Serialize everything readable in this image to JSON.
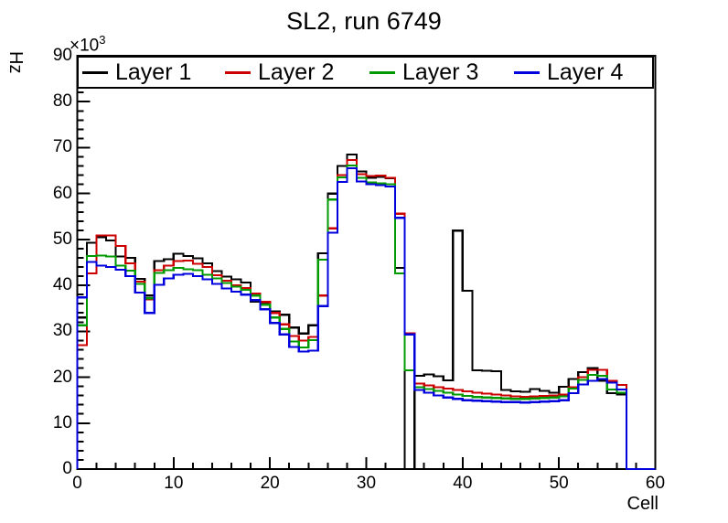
{
  "title": "SL2, run 6749",
  "chart_data": {
    "type": "line",
    "style": "step-histogram",
    "title": "SL2, run 6749",
    "xlabel": "Cell",
    "ylabel": "Hz",
    "y_multiplier_base": "×10",
    "y_multiplier_exp": "3",
    "xlim": [
      0,
      60
    ],
    "ylim": [
      0,
      90
    ],
    "bin_width": 1,
    "x_tick_labels": [
      "0",
      "10",
      "20",
      "30",
      "40",
      "50",
      "60"
    ],
    "y_tick_labels": [
      "0",
      "10",
      "20",
      "30",
      "40",
      "50",
      "60",
      "70",
      "80",
      "90"
    ],
    "x_minor_step": 2,
    "y_minor_step": 2,
    "grid": false,
    "legend_position": "top-inside-full-width",
    "frame_color": "#000000",
    "series": [
      {
        "name": "Layer 1",
        "color": "#000000",
        "values": [
          33.0,
          49.3,
          50.5,
          49.8,
          46.3,
          46.0,
          41.4,
          37.8,
          45.3,
          45.7,
          46.9,
          46.4,
          45.9,
          44.8,
          43.1,
          41.9,
          41.3,
          40.6,
          36.5,
          36.0,
          34.3,
          33.6,
          30.8,
          29.5,
          31.3,
          47.0,
          60.0,
          66.0,
          68.5,
          64.8,
          63.4,
          63.6,
          63.3,
          43.8,
          0.0,
          20.3,
          20.6,
          20.2,
          19.3,
          51.9,
          38.8,
          21.5,
          21.4,
          21.3,
          17.2,
          16.9,
          16.8,
          17.4,
          17.0,
          16.6,
          17.9,
          19.6,
          21.1,
          22.0,
          19.2,
          16.5,
          16.2,
          0.0,
          0.0,
          0.0
        ]
      },
      {
        "name": "Layer 2",
        "color": "#cc0000",
        "values": [
          27.0,
          42.6,
          50.9,
          50.9,
          48.6,
          44.8,
          40.8,
          37.0,
          43.3,
          44.3,
          45.3,
          45.4,
          44.7,
          44.0,
          42.2,
          41.0,
          40.0,
          39.4,
          38.2,
          36.4,
          34.0,
          31.5,
          29.0,
          28.0,
          28.8,
          37.8,
          52.4,
          64.0,
          67.3,
          64.2,
          63.8,
          63.9,
          63.4,
          55.6,
          29.5,
          18.6,
          18.2,
          17.8,
          17.5,
          17.2,
          16.9,
          16.6,
          16.4,
          16.2,
          16.0,
          15.8,
          15.7,
          15.8,
          15.9,
          16.0,
          16.2,
          17.8,
          20.0,
          21.6,
          21.6,
          19.2,
          18.3,
          0.0,
          0.0,
          0.0
        ]
      },
      {
        "name": "Layer 3",
        "color": "#009900",
        "values": [
          31.3,
          46.4,
          46.5,
          46.3,
          44.3,
          43.2,
          40.3,
          37.2,
          42.7,
          43.3,
          43.8,
          43.5,
          43.3,
          42.3,
          41.5,
          40.5,
          39.7,
          39.0,
          37.8,
          35.8,
          33.0,
          30.5,
          27.8,
          26.5,
          28.1,
          45.6,
          58.7,
          63.5,
          66.1,
          63.4,
          62.4,
          62.2,
          62.0,
          42.6,
          21.5,
          17.8,
          17.4,
          17.0,
          16.6,
          16.2,
          15.9,
          15.7,
          15.6,
          15.5,
          15.4,
          15.3,
          15.3,
          15.4,
          15.5,
          15.6,
          15.8,
          17.5,
          19.4,
          20.5,
          20.3,
          17.3,
          16.6,
          0.0,
          0.0,
          0.0
        ]
      },
      {
        "name": "Layer 4",
        "color": "#0000dd",
        "values": [
          37.4,
          45.1,
          44.3,
          44.0,
          43.4,
          42.0,
          38.4,
          34.0,
          40.1,
          41.5,
          42.3,
          42.5,
          42.0,
          41.3,
          40.3,
          39.3,
          38.6,
          38.0,
          36.8,
          34.8,
          31.8,
          29.3,
          26.6,
          25.6,
          25.8,
          35.5,
          51.5,
          62.5,
          65.5,
          62.6,
          62.0,
          61.8,
          61.5,
          54.7,
          29.3,
          17.2,
          16.6,
          16.0,
          15.6,
          15.3,
          15.0,
          14.9,
          14.8,
          14.7,
          14.6,
          14.6,
          14.5,
          14.6,
          14.7,
          14.8,
          15.0,
          16.5,
          18.4,
          19.2,
          19.6,
          18.8,
          17.3,
          0.0,
          0.0,
          0.0
        ]
      }
    ]
  }
}
